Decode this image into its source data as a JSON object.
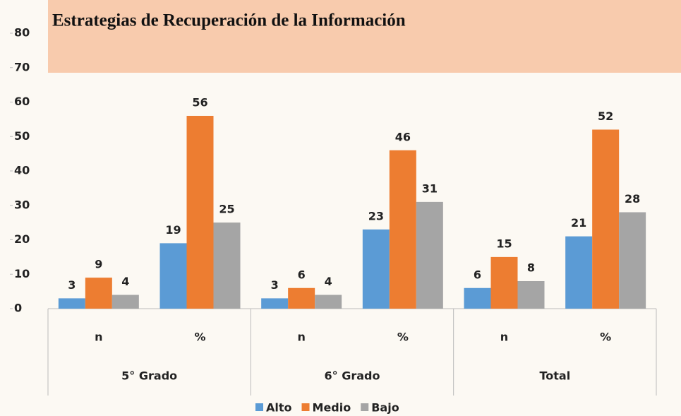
{
  "chart_data": {
    "type": "bar",
    "title": "Estrategias de Recuperación de la Información",
    "categories": [
      "n",
      "%",
      "n",
      "%",
      "n",
      "%"
    ],
    "groups": [
      "5° Grado",
      "6° Grado",
      "Total"
    ],
    "series": [
      {
        "name": "Alto",
        "color": "#5b9bd5",
        "values": [
          3,
          19,
          3,
          23,
          6,
          21
        ]
      },
      {
        "name": "Medio",
        "color": "#ed7d31",
        "values": [
          9,
          56,
          6,
          46,
          15,
          52
        ]
      },
      {
        "name": "Bajo",
        "color": "#a5a5a5",
        "values": [
          4,
          25,
          4,
          31,
          8,
          28
        ]
      }
    ],
    "ylim": [
      0,
      80
    ],
    "yticks": [
      0,
      10,
      20,
      30,
      40,
      50,
      60,
      70,
      80
    ]
  }
}
